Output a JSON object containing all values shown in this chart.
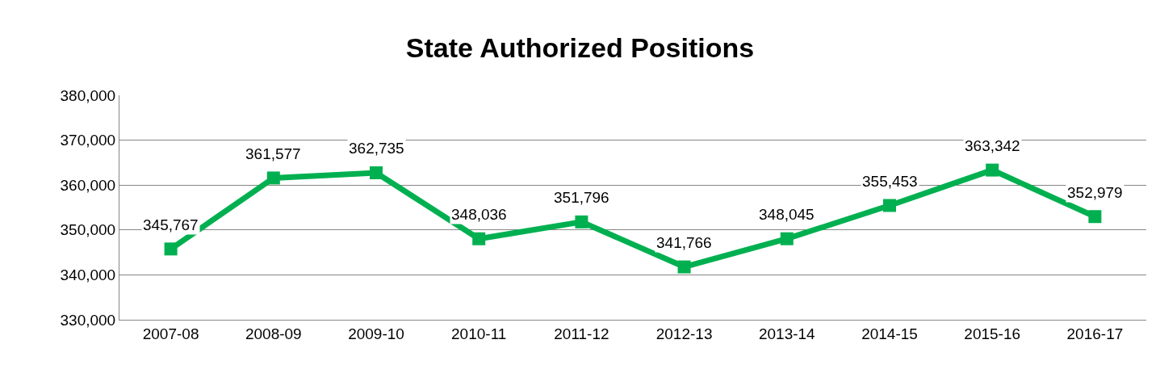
{
  "chart_data": {
    "type": "line",
    "title": "State Authorized Positions",
    "categories": [
      "2007-08",
      "2008-09",
      "2009-10",
      "2010-11",
      "2011-12",
      "2012-13",
      "2013-14",
      "2014-15",
      "2015-16",
      "2016-17"
    ],
    "series": [
      {
        "color": "#00b050",
        "values": [
          345767,
          361577,
          362735,
          348036,
          351796,
          341766,
          348045,
          355453,
          363342,
          352979
        ],
        "value_labels": [
          "345,767",
          "361,577",
          "362,735",
          "348,036",
          "351,796",
          "341,766",
          "348,045",
          "355,453",
          "363,342",
          "352,979"
        ]
      }
    ],
    "ylim": [
      330000,
      380000
    ],
    "yticks": [
      {
        "value": 330000,
        "label": "330,000"
      },
      {
        "value": 340000,
        "label": "340,000"
      },
      {
        "value": 350000,
        "label": "350,000"
      },
      {
        "value": 360000,
        "label": "360,000"
      },
      {
        "value": 370000,
        "label": "370,000"
      },
      {
        "value": 380000,
        "label": "380,000"
      }
    ],
    "grid": "y",
    "legend": false,
    "marker": "square",
    "line_style": "solid"
  }
}
